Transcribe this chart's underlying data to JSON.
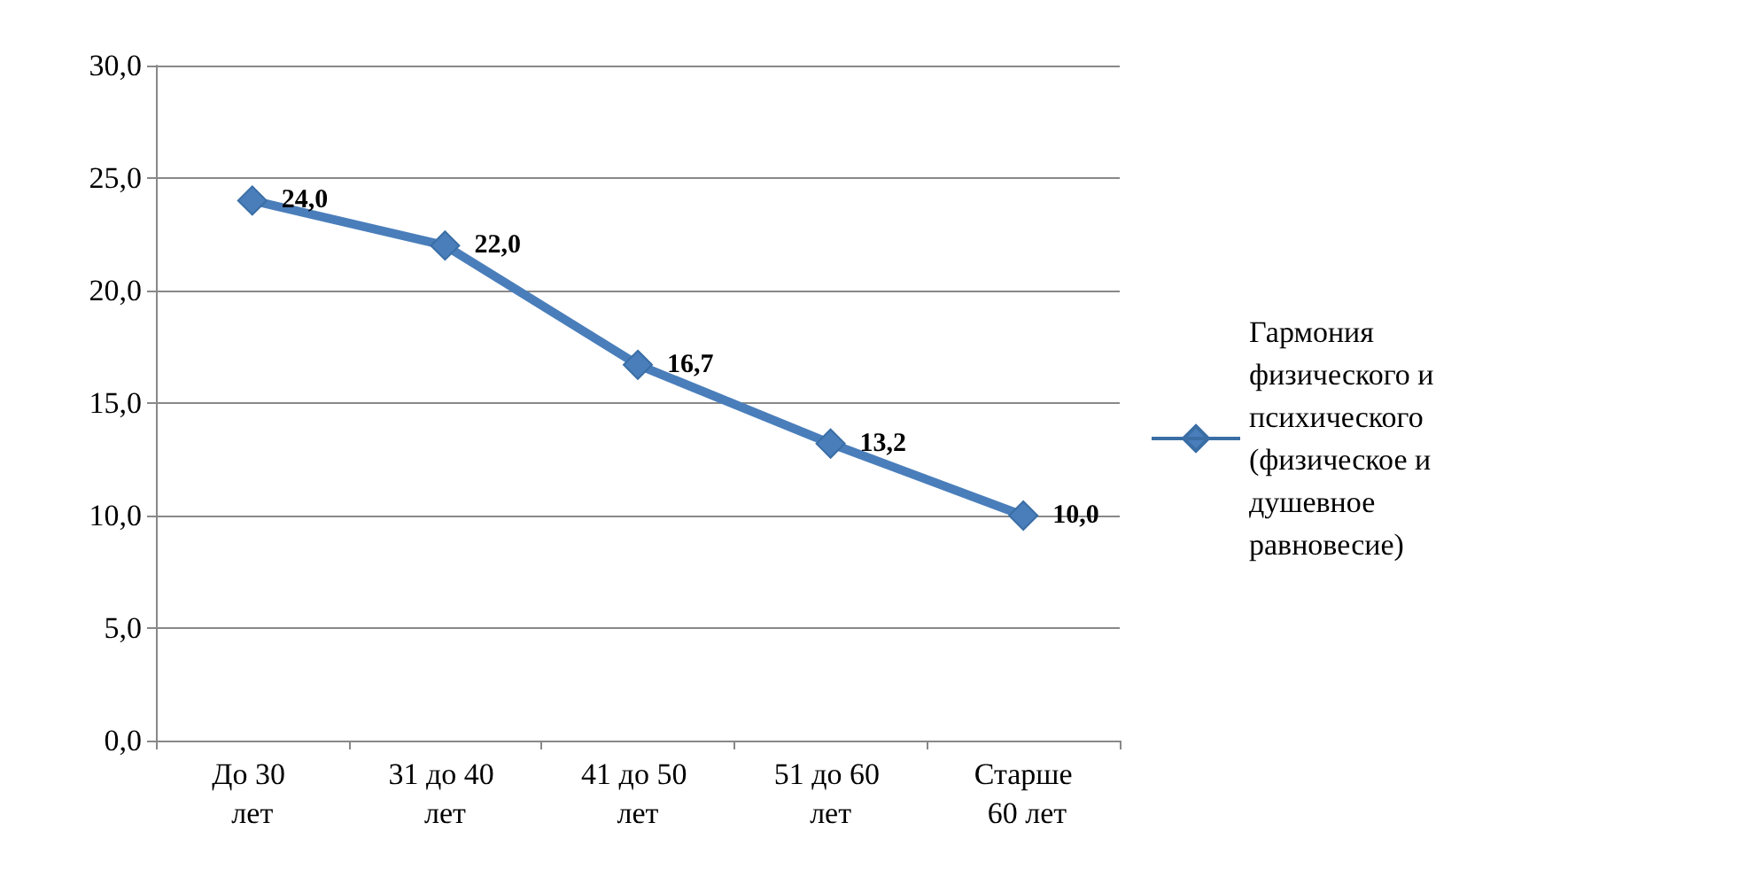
{
  "chart_data": {
    "type": "line",
    "categories": [
      "До 30 лет",
      "31 до 40 лет",
      "41 до 50 лет",
      "51 до 60 лет",
      "Старше 60 лет"
    ],
    "series": [
      {
        "name": "Гармония физического и психического (физическое и душевное равновесие)",
        "color": "#4a7ebb",
        "values": [
          24.0,
          22.0,
          16.7,
          13.2,
          10.0
        ],
        "value_labels": [
          "24,0",
          "22,0",
          "16,7",
          "13,2",
          "10,0"
        ]
      }
    ],
    "ylim": [
      0,
      30
    ],
    "yticks": [
      {
        "value": 0,
        "label": "0,0"
      },
      {
        "value": 5,
        "label": "5,0"
      },
      {
        "value": 10,
        "label": "10,0"
      },
      {
        "value": 15,
        "label": "15,0"
      },
      {
        "value": 20,
        "label": "20,0"
      },
      {
        "value": 25,
        "label": "25,0"
      },
      {
        "value": 30,
        "label": "30,0"
      }
    ],
    "grid": "y",
    "legend": "right",
    "marker": "diamond",
    "line_style": "solid"
  }
}
